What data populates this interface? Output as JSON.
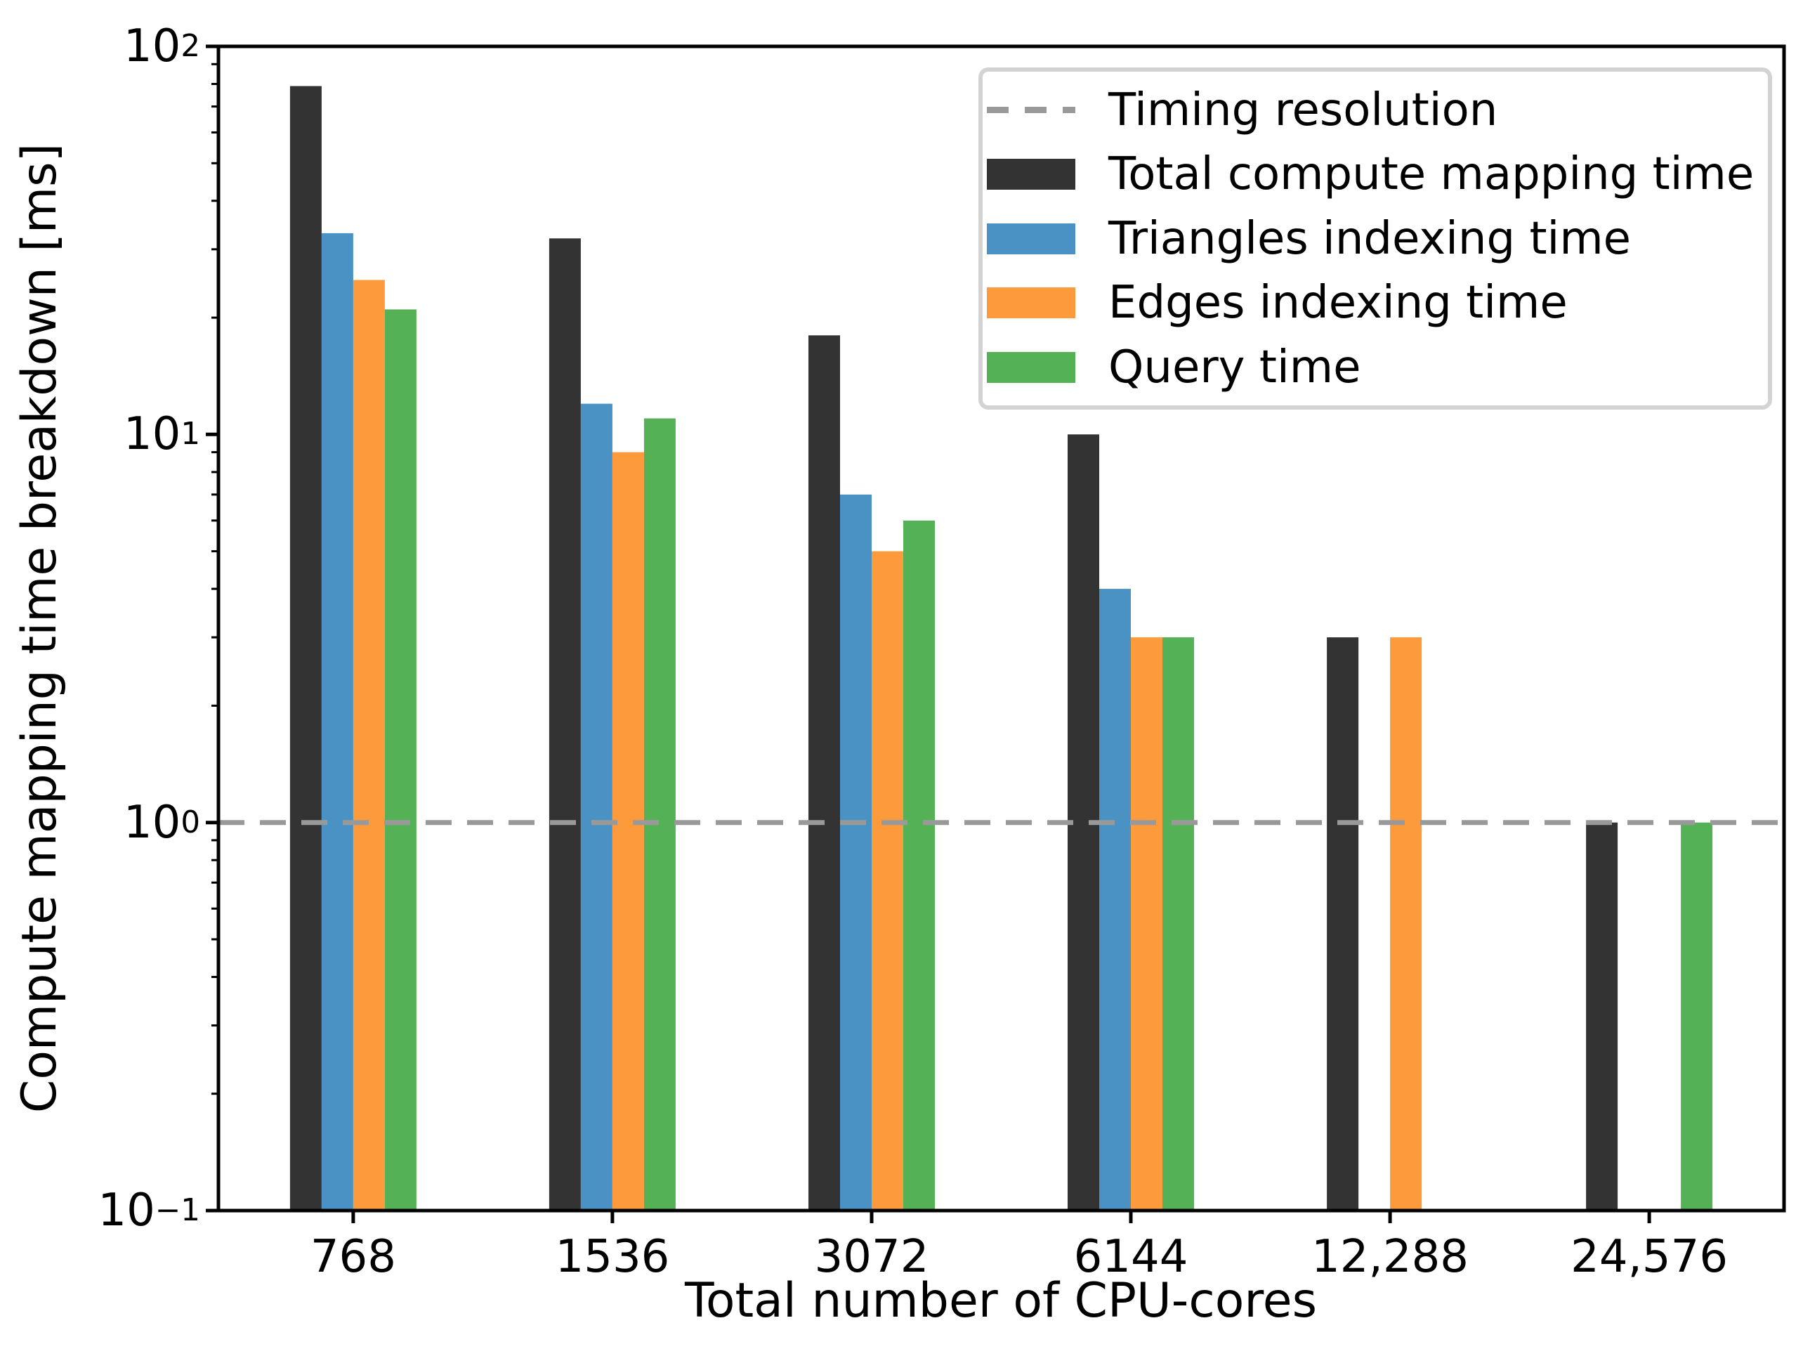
{
  "chart_data": {
    "type": "bar",
    "title": "",
    "xlabel": "Total number of CPU-cores",
    "ylabel": "Compute mapping time breakdown [ms]",
    "x_categories": [
      "768",
      "1536",
      "3072",
      "6144",
      "12,288",
      "24,576"
    ],
    "y_scale": "log",
    "ylim": [
      0.1,
      100
    ],
    "y_ticks": [
      {
        "base": "10",
        "exp": "2",
        "value": 100
      },
      {
        "base": "10",
        "exp": "1",
        "value": 10
      },
      {
        "base": "10",
        "exp": "0",
        "value": 1
      },
      {
        "base": "10",
        "exp": "−1",
        "value": 0.1
      }
    ],
    "grid": false,
    "legend_position": "upper right",
    "series": [
      {
        "name": "Total compute mapping time",
        "color": "#333333",
        "values": [
          79,
          32,
          18,
          10,
          3,
          1
        ]
      },
      {
        "name": "Triangles indexing time",
        "color": "#4B92C4",
        "values": [
          33,
          12,
          7,
          4,
          null,
          null
        ]
      },
      {
        "name": "Edges indexing time",
        "color": "#FD9A3B",
        "values": [
          25,
          9,
          5,
          3,
          3,
          null
        ]
      },
      {
        "name": "Query time",
        "color": "#55B155",
        "values": [
          21,
          11,
          6,
          3,
          null,
          1
        ]
      }
    ],
    "reference_line": {
      "label": "Timing resolution",
      "value": 1,
      "color": "#999999",
      "style": "dashed"
    }
  }
}
